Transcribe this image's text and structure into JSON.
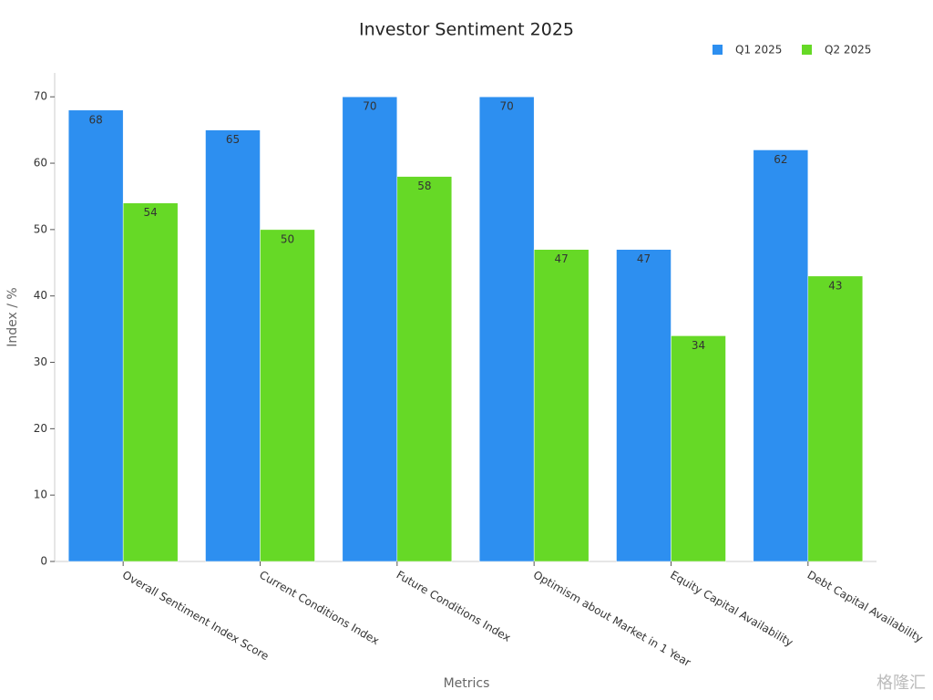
{
  "chart_data": {
    "type": "bar",
    "title": "Investor Sentiment 2025",
    "x_label": "Metrics",
    "y_label": "Index / %",
    "categories": [
      "Overall Sentiment Index Score",
      "Current Conditions Index",
      "Future Conditions Index",
      "Optimism about Market in 1 Year",
      "Equity Capital Availability",
      "Debt Capital Availability"
    ],
    "series": [
      {
        "name": "Q1 2025",
        "color": "#2d8ff0",
        "values": [
          68,
          65,
          70,
          70,
          47,
          62
        ]
      },
      {
        "name": "Q2 2025",
        "color": "#66d926",
        "values": [
          54,
          50,
          58,
          47,
          34,
          43
        ]
      }
    ],
    "ylim": [
      0,
      73.6
    ],
    "yticks": [
      0,
      10,
      20,
      30,
      40,
      50,
      60,
      70
    ],
    "legend": "top-right",
    "watermark": "格隆汇"
  }
}
